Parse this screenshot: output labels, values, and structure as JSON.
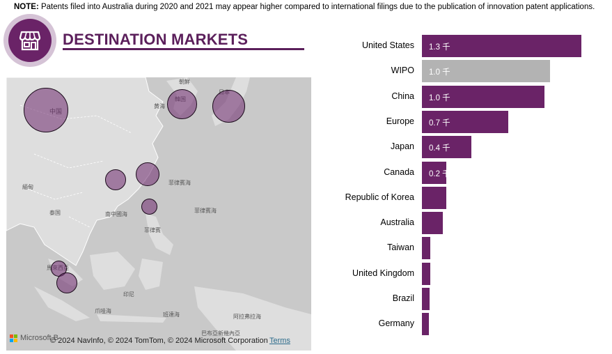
{
  "note": {
    "prefix": "NOTE:",
    "text": " Patents filed into Australia during 2020 and 2021 may appear higher compared to international filings due to the publication of innovation patent applications."
  },
  "header": {
    "title": "DESTINATION MARKETS",
    "icon": "storefront-icon"
  },
  "map": {
    "attribution_brand": "Microsoft B",
    "copyright": "© 2024 NavInfo, © 2024 TomTom, © 2024 Microsoft Corporation",
    "terms": "Terms",
    "place_labels": [
      "中国",
      "朝鮮",
      "韓国",
      "日本",
      "黄海",
      "菲律賓海",
      "菲律賓海",
      "緬甸",
      "泰国",
      "南中國海",
      "菲律賓",
      "馬來西亞",
      "印尼",
      "爪哇海",
      "班達海",
      "巴布亞新幾內亞",
      "阿拉弗拉海"
    ],
    "bubble_color": "#6e286e"
  },
  "colors": {
    "bar_primary": "#6a2367",
    "bar_highlight": "#b3b3b3",
    "title": "#5b1f5b"
  },
  "chart_data": {
    "type": "bar",
    "orientation": "horizontal",
    "categories": [
      "United States",
      "WIPO",
      "China",
      "Europe",
      "Japan",
      "Canada",
      "Republic of Korea",
      "Australia",
      "Taiwan",
      "United Kingdom",
      "Brazil",
      "Germany"
    ],
    "values": [
      1.3,
      1.04,
      1.0,
      0.7,
      0.4,
      0.2,
      0.2,
      0.17,
      0.07,
      0.07,
      0.06,
      0.055
    ],
    "data_labels": [
      "1.3 千",
      "1.0 千",
      "1.0 千",
      "0.7 千",
      "0.4 千",
      "0.2 千",
      "",
      "",
      "",
      "",
      "",
      ""
    ],
    "highlighted": [
      false,
      true,
      false,
      false,
      false,
      false,
      false,
      false,
      false,
      false,
      false,
      false
    ],
    "unit": "千",
    "xlim": [
      0,
      1.36
    ]
  }
}
